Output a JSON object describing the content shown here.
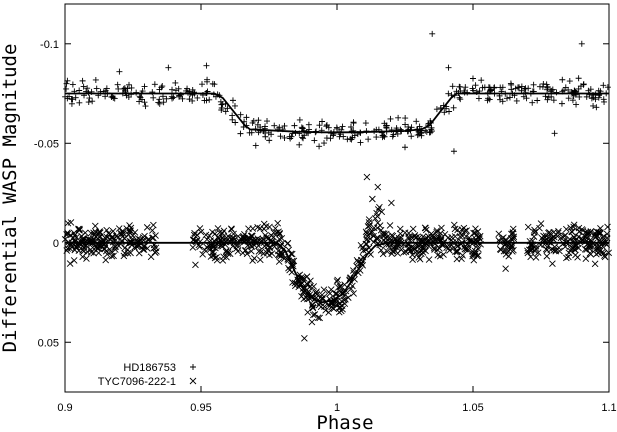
{
  "chart_data": {
    "type": "scatter",
    "title": "",
    "xlabel": "Phase",
    "ylabel": "Differential WASP Magnitude",
    "xlim": [
      0.9,
      1.1
    ],
    "ylim": [
      -0.12,
      0.075
    ],
    "y_reversed": true,
    "x_ticks": [
      0.9,
      0.95,
      1.0,
      1.05,
      1.1
    ],
    "x_tick_labels": [
      "0.9",
      "0.95",
      "1",
      "1.05",
      "1.1"
    ],
    "y_ticks": [
      -0.1,
      -0.05,
      0.0,
      0.05
    ],
    "y_tick_labels": [
      "-0.1",
      "-0.05",
      "0",
      "0.05"
    ],
    "grid": false,
    "legend_position": "bottom-left",
    "series": [
      {
        "name": "HD186753",
        "marker": "+",
        "baseline": -0.075,
        "eclipse_depth": 0.019,
        "ingress_start": 0.955,
        "ingress_end": 0.968,
        "egress_start": 1.031,
        "egress_end": 1.044,
        "scatter": 0.006,
        "x_gaps": [],
        "outliers": [
          [
            0.938,
            -0.088
          ],
          [
            1.035,
            -0.105
          ],
          [
            1.043,
            -0.046
          ],
          [
            1.041,
            -0.088
          ],
          [
            1.09,
            -0.1
          ],
          [
            1.08,
            -0.055
          ],
          [
            0.92,
            -0.086
          ],
          [
            0.952,
            -0.089
          ],
          [
            1.025,
            -0.048
          ]
        ]
      },
      {
        "name": "TYC7096-222-1",
        "marker": "x",
        "baseline": 0.0,
        "eclipse_depth": 0.03,
        "eclipse_center": 0.994,
        "eclipse_halfwidth": 0.012,
        "brightening_peak": -0.02,
        "brightening_center": 1.013,
        "scatter": 0.008,
        "x_gaps": [
          [
            0.934,
            0.947
          ],
          [
            1.053,
            1.059
          ],
          [
            1.065,
            1.07
          ]
        ],
        "outliers": [
          [
            1.011,
            -0.033
          ],
          [
            1.015,
            -0.028
          ],
          [
            1.013,
            -0.022
          ],
          [
            1.02,
            -0.02
          ],
          [
            0.988,
            0.048
          ],
          [
            1.065,
            -0.003
          ],
          [
            1.062,
            0.013
          ]
        ]
      }
    ],
    "fit_lines": [
      {
        "series": "HD186753",
        "points": [
          [
            0.9,
            -0.075
          ],
          [
            0.955,
            -0.075
          ],
          [
            0.958,
            -0.0728
          ],
          [
            0.962,
            -0.066
          ],
          [
            0.966,
            -0.0592
          ],
          [
            0.968,
            -0.057
          ],
          [
            0.975,
            -0.0565
          ],
          [
            0.985,
            -0.0558
          ],
          [
            0.995,
            -0.0555
          ],
          [
            1.005,
            -0.0555
          ],
          [
            1.015,
            -0.0558
          ],
          [
            1.025,
            -0.0562
          ],
          [
            1.031,
            -0.057
          ],
          [
            1.034,
            -0.059
          ],
          [
            1.038,
            -0.066
          ],
          [
            1.042,
            -0.0728
          ],
          [
            1.044,
            -0.075
          ],
          [
            1.1,
            -0.075
          ]
        ]
      },
      {
        "series": "TYC7096-222-1",
        "points": [
          [
            0.9,
            0.0
          ],
          [
            0.978,
            0.0
          ],
          [
            0.981,
            0.004
          ],
          [
            0.984,
            0.013
          ],
          [
            0.987,
            0.022
          ],
          [
            0.99,
            0.027
          ],
          [
            0.994,
            0.03
          ],
          [
            0.998,
            0.029
          ],
          [
            1.002,
            0.026
          ],
          [
            1.005,
            0.02
          ],
          [
            1.008,
            0.013
          ],
          [
            1.011,
            0.006
          ],
          [
            1.014,
            0.0015
          ],
          [
            1.018,
            0.0
          ],
          [
            1.1,
            0.0
          ]
        ]
      }
    ]
  }
}
